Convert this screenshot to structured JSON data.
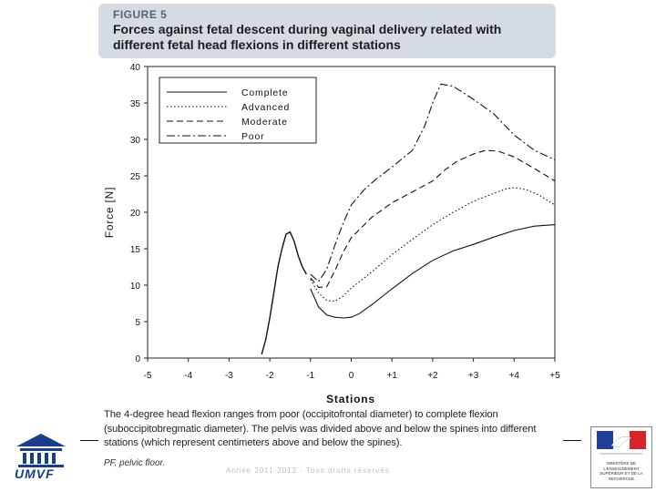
{
  "figure": {
    "number": "FIGURE 5",
    "title": "Forces against fetal descent during vaginal delivery related with different fetal head flexions in different stations"
  },
  "caption": "The 4-degree head flexion ranges from poor (occipitofrontal diameter) to complete flexion (suboccipitobregmatic diameter). The pelvis was divided above and below the spines into different stations (which represent centimeters above and below the spines).",
  "footnote": "PF, pelvic floor.",
  "footer": {
    "left_logo_text": "UMVF",
    "faint_text": "Année 2011-2012 - Tous droits réservés",
    "right_logo_text": "MINISTÈRE DE L'ENSEIGNEMENT SUPÉRIEUR ET DE LA RECHERCHE"
  },
  "chart_data": {
    "type": "line",
    "title": "",
    "xlabel": "Stations",
    "ylabel": "Force [N]",
    "xlim": [
      -5,
      5
    ],
    "ylim": [
      0,
      40
    ],
    "x_tick_labels": [
      "-5",
      "-4",
      "-3",
      "-2",
      "-1",
      "0",
      "+1",
      "+2",
      "+3",
      "+4",
      "+5"
    ],
    "y_tick_labels": [
      "0",
      "5",
      "10",
      "15",
      "20",
      "25",
      "30",
      "35",
      "40"
    ],
    "grid": false,
    "legend_position": "top-left",
    "shared_rise": {
      "x": [
        -2.2,
        -2.1,
        -2.0,
        -1.9,
        -1.8,
        -1.7,
        -1.6,
        -1.5,
        -1.4,
        -1.3,
        -1.2,
        -1.1
      ],
      "y": [
        0.5,
        2.5,
        5.5,
        9.0,
        12.5,
        15.0,
        17.0,
        17.3,
        16.0,
        14.0,
        12.5,
        11.5
      ]
    },
    "series": [
      {
        "name": "Complete",
        "dash": "",
        "x": [
          -1.0,
          -0.8,
          -0.6,
          -0.4,
          -0.2,
          0.0,
          0.2,
          0.5,
          1.0,
          1.5,
          2.0,
          2.5,
          3.0,
          3.5,
          4.0,
          4.5,
          5.0
        ],
        "y": [
          9.5,
          7.0,
          5.9,
          5.6,
          5.5,
          5.6,
          6.1,
          7.3,
          9.5,
          11.6,
          13.4,
          14.7,
          15.6,
          16.6,
          17.5,
          18.1,
          18.3
        ]
      },
      {
        "name": "Advanced",
        "dash": "1.5,2.5",
        "x": [
          -1.0,
          -0.8,
          -0.6,
          -0.4,
          -0.2,
          0.0,
          0.5,
          1.0,
          1.5,
          2.0,
          2.5,
          3.0,
          3.5,
          3.8,
          4.0,
          4.3,
          4.6,
          5.0
        ],
        "y": [
          10.8,
          8.9,
          7.9,
          7.8,
          8.5,
          9.6,
          11.8,
          14.2,
          16.3,
          18.3,
          20.0,
          21.5,
          22.6,
          23.2,
          23.4,
          23.1,
          22.4,
          21.0
        ]
      },
      {
        "name": "Moderate",
        "dash": "7,4",
        "x": [
          -1.0,
          -0.8,
          -0.6,
          -0.4,
          -0.2,
          0.0,
          0.5,
          1.0,
          1.5,
          2.0,
          2.3,
          2.6,
          3.0,
          3.3,
          3.6,
          4.0,
          4.5,
          5.0
        ],
        "y": [
          11.0,
          9.7,
          9.8,
          12.0,
          14.5,
          16.5,
          19.3,
          21.3,
          22.8,
          24.3,
          25.8,
          27.0,
          28.0,
          28.5,
          28.4,
          27.6,
          26.0,
          24.3
        ]
      },
      {
        "name": "Poor",
        "dash": "9,3,2,3",
        "x": [
          -1.0,
          -0.8,
          -0.6,
          -0.4,
          -0.2,
          0.0,
          0.3,
          0.6,
          1.0,
          1.5,
          1.8,
          2.0,
          2.2,
          2.5,
          3.0,
          3.5,
          4.0,
          4.5,
          5.0
        ],
        "y": [
          11.5,
          10.5,
          12.2,
          15.5,
          18.5,
          21.0,
          23.0,
          24.5,
          26.2,
          28.5,
          31.8,
          35.0,
          37.6,
          37.3,
          35.5,
          33.5,
          30.6,
          28.5,
          27.2
        ]
      }
    ]
  }
}
